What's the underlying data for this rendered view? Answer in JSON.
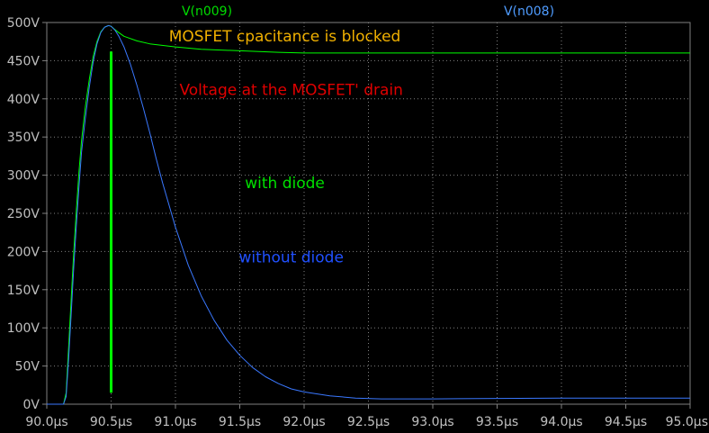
{
  "chart_data": {
    "type": "line",
    "title": "",
    "xlabel": "",
    "ylabel": "",
    "x_unit": "µs",
    "y_unit": "V",
    "xlim": [
      90.0,
      95.0
    ],
    "ylim": [
      0,
      500
    ],
    "x_ticks": [
      90.0,
      90.5,
      91.0,
      91.5,
      92.0,
      92.5,
      93.0,
      93.5,
      94.0,
      94.5,
      95.0
    ],
    "x_tick_labels": [
      "90.0µs",
      "90.5µs",
      "91.0µs",
      "91.5µs",
      "92.0µs",
      "92.5µs",
      "93.0µs",
      "93.5µs",
      "94.0µs",
      "94.5µs",
      "95.0µs"
    ],
    "y_ticks": [
      0,
      50,
      100,
      150,
      200,
      250,
      300,
      350,
      400,
      450,
      500
    ],
    "y_tick_labels": [
      "0V",
      "50V",
      "100V",
      "150V",
      "200V",
      "250V",
      "300V",
      "350V",
      "400V",
      "450V",
      "500V"
    ],
    "grid": true,
    "background": "#000000",
    "axis_color": "#808080",
    "grid_color": "#808080",
    "tick_label_color": "#c0c0c0",
    "series": [
      {
        "name": "V(n009)",
        "color": "#00ff00",
        "legend_color": "#00dd00",
        "x": [
          90.0,
          90.13,
          90.15,
          90.17,
          90.19,
          90.21,
          90.23,
          90.25,
          90.27,
          90.3,
          90.33,
          90.36,
          90.39,
          90.42,
          90.45,
          90.48,
          90.5,
          90.52,
          90.55,
          90.6,
          90.7,
          90.8,
          91.0,
          91.2,
          91.5,
          91.8,
          92.0,
          92.5,
          93.0,
          94.0,
          95.0
        ],
        "y": [
          0,
          0,
          15,
          75,
          140,
          200,
          255,
          305,
          345,
          390,
          425,
          455,
          475,
          488,
          494,
          496,
          495,
          492,
          488,
          482,
          476,
          472,
          468,
          465,
          463,
          461,
          460,
          460,
          460,
          460,
          460
        ]
      },
      {
        "name": "V(n008)",
        "color": "#3a78ff",
        "legend_color": "#4f9cff",
        "x": [
          90.0,
          90.13,
          90.15,
          90.17,
          90.19,
          90.21,
          90.23,
          90.25,
          90.27,
          90.3,
          90.33,
          90.36,
          90.39,
          90.42,
          90.45,
          90.48,
          90.5,
          90.53,
          90.56,
          90.6,
          90.65,
          90.7,
          90.75,
          90.8,
          90.85,
          90.9,
          91.0,
          91.1,
          91.2,
          91.3,
          91.4,
          91.5,
          91.6,
          91.7,
          91.8,
          91.9,
          92.0,
          92.2,
          92.4,
          92.6,
          93.0,
          94.0,
          95.0
        ],
        "y": [
          0,
          0,
          10,
          60,
          120,
          180,
          235,
          285,
          330,
          375,
          415,
          448,
          472,
          487,
          494,
          496,
          495,
          490,
          482,
          468,
          445,
          418,
          388,
          356,
          322,
          290,
          232,
          182,
          142,
          110,
          84,
          64,
          48,
          36,
          27,
          20,
          16,
          11,
          8,
          7,
          7,
          8,
          8
        ]
      }
    ],
    "marker_line": {
      "x": 90.5,
      "y_from": 15,
      "y_to": 462,
      "color": "#00ff00"
    },
    "annotations": [
      {
        "text": "MOSFET cpacitance is blocked",
        "x": 91.85,
        "y": 475,
        "color": "#f0b000"
      },
      {
        "text": "Voltage at the MOSFET' drain",
        "x": 91.9,
        "y": 405,
        "color": "#e00000"
      },
      {
        "text": "with diode",
        "x": 91.85,
        "y": 283,
        "color": "#00e000"
      },
      {
        "text": "without diode",
        "x": 91.9,
        "y": 186,
        "color": "#2050ff"
      }
    ]
  }
}
